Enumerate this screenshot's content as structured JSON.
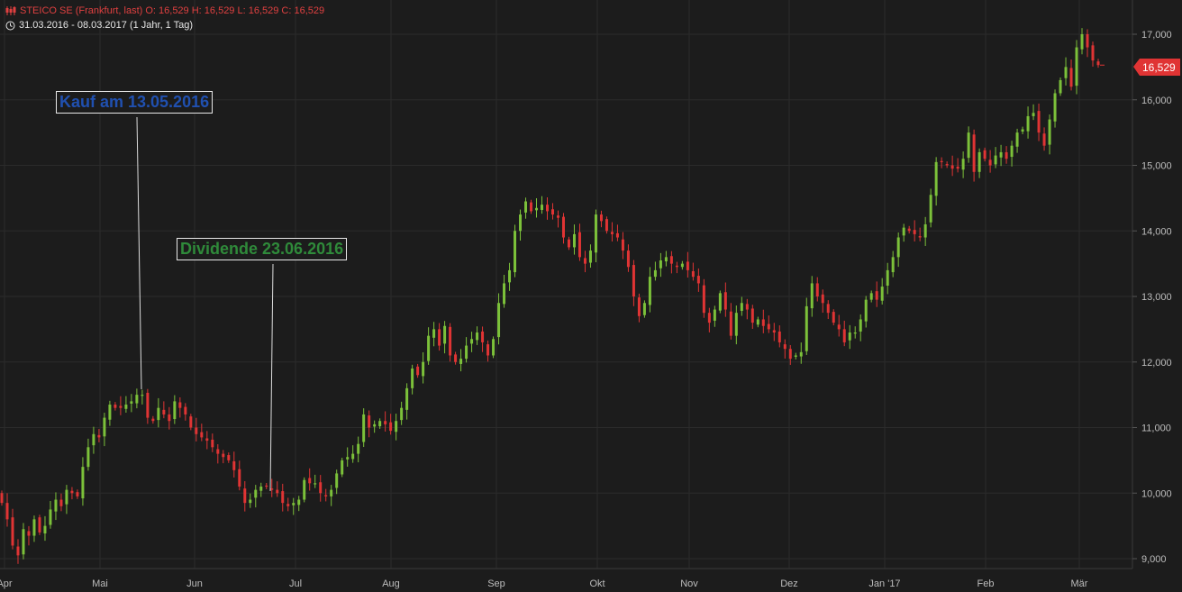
{
  "header": {
    "line1": "STEICO SE (Frankfurt, last)  O: 16,529  H: 16,529  L: 16,529  C: 16,529",
    "line2": "31.03.2016 - 08.03.2017    (1 Jahr, 1 Tag)",
    "icon1": "candlestick-icon",
    "icon2": "clock-icon"
  },
  "annotations": [
    {
      "text": "Kauf am 13.05.2016",
      "color": "#2050b0"
    },
    {
      "text": "Dividende 23.06.2016",
      "color": "#2f8a3a"
    }
  ],
  "price_badge": "16,529",
  "colors": {
    "up": "#7cc13a",
    "down": "#e03434",
    "background": "#1c1c1c"
  },
  "chart_data": {
    "type": "candlestick",
    "title": "STEICO SE (Frankfurt, last)",
    "ylim": [
      8.8,
      17.3
    ],
    "y_ticks": [
      "9,000",
      "10,000",
      "11,000",
      "12,000",
      "13,000",
      "14,000",
      "15,000",
      "16,000",
      "17,000"
    ],
    "x_ticks": [
      "Apr",
      "Mai",
      "Jun",
      "Jul",
      "Aug",
      "Sep",
      "Okt",
      "Nov",
      "Dez",
      "Jan '17",
      "Feb",
      "Mär"
    ],
    "last_price": 16.529,
    "closes": [
      9.85,
      9.6,
      9.2,
      9.05,
      9.45,
      9.35,
      9.6,
      9.4,
      9.5,
      9.75,
      9.9,
      9.8,
      10.05,
      10.0,
      9.95,
      10.4,
      10.7,
      10.9,
      10.85,
      11.15,
      11.35,
      11.3,
      11.3,
      11.35,
      11.4,
      11.5,
      11.5,
      11.15,
      11.1,
      11.3,
      11.2,
      11.1,
      11.4,
      11.3,
      11.2,
      11.0,
      10.9,
      10.85,
      10.8,
      10.7,
      10.6,
      10.55,
      10.5,
      10.35,
      10.1,
      9.85,
      9.9,
      10.05,
      10.1,
      10.1,
      10.05,
      10.0,
      9.85,
      9.8,
      9.85,
      9.9,
      10.2,
      10.15,
      10.15,
      10.0,
      9.95,
      10.05,
      10.3,
      10.5,
      10.55,
      10.6,
      10.75,
      11.2,
      11.0,
      11.05,
      11.1,
      11.05,
      10.95,
      11.1,
      11.3,
      11.6,
      11.9,
      11.8,
      12.0,
      12.4,
      12.5,
      12.25,
      12.55,
      12.1,
      12.0,
      12.05,
      12.25,
      12.35,
      12.45,
      12.3,
      12.1,
      12.35,
      12.9,
      13.2,
      13.4,
      14.0,
      14.25,
      14.45,
      14.3,
      14.35,
      14.4,
      14.3,
      14.25,
      14.2,
      13.9,
      13.75,
      13.95,
      13.6,
      13.5,
      13.7,
      14.25,
      14.15,
      14.0,
      13.95,
      13.9,
      13.7,
      13.45,
      13.0,
      12.7,
      12.9,
      13.3,
      13.4,
      13.55,
      13.6,
      13.5,
      13.45,
      13.5,
      13.4,
      13.3,
      13.2,
      12.75,
      12.6,
      12.8,
      13.05,
      12.8,
      12.4,
      12.75,
      12.9,
      12.8,
      12.6,
      12.65,
      12.55,
      12.5,
      12.45,
      12.3,
      12.2,
      12.05,
      12.1,
      12.15,
      12.85,
      13.2,
      13.0,
      12.9,
      12.75,
      12.6,
      12.5,
      12.3,
      12.45,
      12.45,
      12.65,
      12.95,
      13.05,
      12.95,
      13.15,
      13.4,
      13.6,
      13.9,
      14.05,
      14.0,
      13.95,
      13.9,
      14.1,
      14.55,
      15.05,
      15.05,
      15.0,
      14.95,
      14.95,
      15.1,
      15.5,
      14.9,
      15.2,
      15.1,
      15.0,
      15.15,
      15.2,
      15.1,
      15.3,
      15.5,
      15.55,
      15.75,
      15.8,
      15.5,
      15.3,
      15.7,
      16.1,
      16.3,
      16.5,
      16.2,
      16.8,
      17.0,
      16.8,
      16.6,
      16.529
    ]
  }
}
